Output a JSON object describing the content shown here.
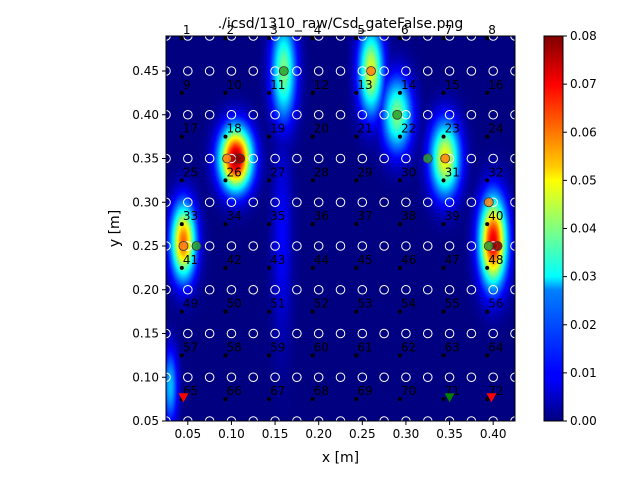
{
  "chart_data": {
    "type": "heatmap",
    "title": "./icsd/1310_raw/Csd_gateFalse.png",
    "xlabel": "x [m]",
    "ylabel": "y [m]",
    "xlim": [
      0.025,
      0.425
    ],
    "ylim": [
      0.05,
      0.49
    ],
    "x_ticks": [
      "0.05",
      "0.10",
      "0.15",
      "0.20",
      "0.25",
      "0.30",
      "0.35",
      "0.40"
    ],
    "y_ticks": [
      "0.05",
      "0.10",
      "0.15",
      "0.20",
      "0.25",
      "0.30",
      "0.35",
      "0.40",
      "0.45"
    ],
    "colorbar": {
      "min": 0.0,
      "max": 0.08,
      "colormap": "jet",
      "ticks": [
        "0.00",
        "0.01",
        "0.02",
        "0.03",
        "0.04",
        "0.05",
        "0.06",
        "0.07",
        "0.08"
      ]
    },
    "hotspots": [
      {
        "x": 0.16,
        "y": 0.45,
        "value": 0.04,
        "sx": 0.01,
        "sy": 0.04
      },
      {
        "x": 0.26,
        "y": 0.45,
        "value": 0.048,
        "sx": 0.01,
        "sy": 0.035
      },
      {
        "x": 0.29,
        "y": 0.4,
        "value": 0.04,
        "sx": 0.012,
        "sy": 0.03
      },
      {
        "x": 0.105,
        "y": 0.35,
        "value": 0.078,
        "sx": 0.013,
        "sy": 0.025
      },
      {
        "x": 0.345,
        "y": 0.35,
        "value": 0.05,
        "sx": 0.012,
        "sy": 0.03
      },
      {
        "x": 0.045,
        "y": 0.255,
        "value": 0.062,
        "sx": 0.01,
        "sy": 0.03
      },
      {
        "x": 0.4,
        "y": 0.255,
        "value": 0.072,
        "sx": 0.011,
        "sy": 0.035
      },
      {
        "x": 0.158,
        "y": 0.26,
        "value": 0.01,
        "sx": 0.008,
        "sy": 0.08
      },
      {
        "x": 0.03,
        "y": 0.09,
        "value": 0.025,
        "sx": 0.006,
        "sy": 0.03
      }
    ],
    "grid_points": {
      "x": [
        0.025,
        0.05,
        0.075,
        0.1,
        0.125,
        0.15,
        0.175,
        0.2,
        0.225,
        0.25,
        0.275,
        0.3,
        0.325,
        0.35,
        0.375,
        0.4,
        0.425
      ],
      "y": [
        0.05,
        0.1,
        0.15,
        0.2,
        0.25,
        0.3,
        0.35,
        0.4,
        0.45,
        0.49
      ]
    },
    "electrodes": {
      "x": [
        0.05,
        0.1,
        0.15,
        0.2,
        0.25,
        0.3,
        0.35,
        0.4
      ],
      "y": [
        0.4875,
        0.425,
        0.375,
        0.325,
        0.275,
        0.225,
        0.175,
        0.125,
        0.075
      ],
      "labels": [
        "1",
        "2",
        "3",
        "4",
        "5",
        "6",
        "7",
        "8",
        "9",
        "10",
        "11",
        "12",
        "13",
        "14",
        "15",
        "16",
        "17",
        "18",
        "19",
        "20",
        "21",
        "22",
        "23",
        "24",
        "25",
        "26",
        "27",
        "28",
        "29",
        "30",
        "31",
        "32",
        "33",
        "34",
        "35",
        "36",
        "37",
        "38",
        "39",
        "40",
        "41",
        "42",
        "43",
        "44",
        "45",
        "46",
        "47",
        "48",
        "49",
        "50",
        "51",
        "52",
        "53",
        "54",
        "55",
        "56",
        "57",
        "58",
        "59",
        "60",
        "61",
        "62",
        "63",
        "64",
        "65",
        "66",
        "67",
        "68",
        "69",
        "70",
        "71",
        "72"
      ]
    },
    "source_markers": [
      {
        "x": 0.045,
        "y": 0.076,
        "color": "#ff0000",
        "shape": "triangle-down"
      },
      {
        "x": 0.35,
        "y": 0.076,
        "color": "#008000",
        "shape": "triangle-down"
      },
      {
        "x": 0.398,
        "y": 0.076,
        "color": "#ff0000",
        "shape": "triangle-down"
      }
    ],
    "peak_markers": [
      {
        "x": 0.16,
        "y": 0.45,
        "color": "#2ca02c"
      },
      {
        "x": 0.26,
        "y": 0.45,
        "color": "#ff7f0e"
      },
      {
        "x": 0.29,
        "y": 0.4,
        "color": "#2ca02c"
      },
      {
        "x": 0.095,
        "y": 0.35,
        "color": "#ff7f0e"
      },
      {
        "x": 0.11,
        "y": 0.35,
        "color": "#8b0000"
      },
      {
        "x": 0.325,
        "y": 0.35,
        "color": "#2ca02c"
      },
      {
        "x": 0.345,
        "y": 0.35,
        "color": "#ff7f0e"
      },
      {
        "x": 0.045,
        "y": 0.25,
        "color": "#ff7f0e"
      },
      {
        "x": 0.06,
        "y": 0.25,
        "color": "#2ca02c"
      },
      {
        "x": 0.395,
        "y": 0.3,
        "color": "#ff7f0e"
      },
      {
        "x": 0.395,
        "y": 0.25,
        "color": "#2ca02c"
      },
      {
        "x": 0.405,
        "y": 0.25,
        "color": "#8b0000"
      }
    ]
  }
}
